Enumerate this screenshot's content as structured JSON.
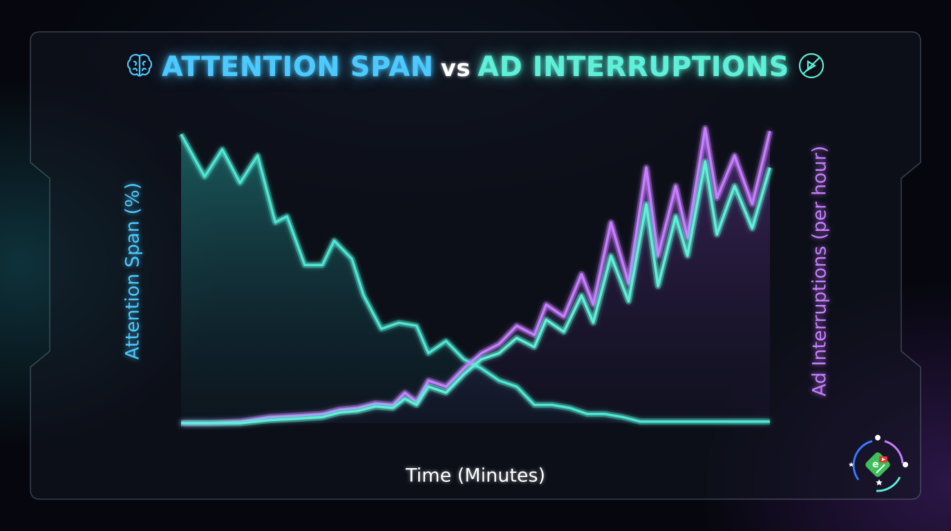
{
  "chart_data": {
    "type": "line",
    "title_part1": "ATTENTION SPAN",
    "title_vs": "vs",
    "title_part2": "AD INTERRUPTIONS",
    "title_icon_left": "brain-icon",
    "title_icon_right": "no-ads-icon",
    "xlabel": "Time (Minutes)",
    "ylabel_left": "Attention Span (%)",
    "ylabel_right": "Ad Interruptions (per hour)",
    "xlim": [
      0,
      1
    ],
    "ylim": [
      0,
      1
    ],
    "x_ticks": [
      0.25,
      0.5,
      0.75
    ],
    "grid": false,
    "series": [
      {
        "color": "#4fe6d2",
        "axis": "left",
        "x": [
          0.0,
          0.04,
          0.07,
          0.1,
          0.13,
          0.16,
          0.18,
          0.21,
          0.24,
          0.26,
          0.29,
          0.31,
          0.34,
          0.37,
          0.4,
          0.42,
          0.45,
          0.48,
          0.51,
          0.54,
          0.57,
          0.6,
          0.63,
          0.66,
          0.69,
          0.72,
          0.75,
          0.78,
          0.81,
          0.84,
          0.87,
          0.9,
          0.93,
          0.96,
          1.0
        ],
        "values": [
          0.95,
          0.81,
          0.9,
          0.79,
          0.88,
          0.66,
          0.68,
          0.52,
          0.52,
          0.6,
          0.54,
          0.42,
          0.31,
          0.33,
          0.32,
          0.23,
          0.27,
          0.21,
          0.18,
          0.14,
          0.12,
          0.06,
          0.06,
          0.05,
          0.03,
          0.03,
          0.02,
          0.005,
          0.005,
          0.005,
          0.005,
          0.005,
          0.005,
          0.005,
          0.005
        ]
      },
      {
        "color": "#c77dff",
        "axis": "right",
        "x": [
          0.0,
          0.05,
          0.1,
          0.15,
          0.2,
          0.24,
          0.27,
          0.3,
          0.33,
          0.36,
          0.38,
          0.4,
          0.42,
          0.45,
          0.48,
          0.51,
          0.54,
          0.57,
          0.6,
          0.62,
          0.65,
          0.68,
          0.7,
          0.73,
          0.76,
          0.79,
          0.81,
          0.84,
          0.86,
          0.89,
          0.91,
          0.94,
          0.97,
          1.0
        ],
        "values": [
          0.0,
          0.0,
          0.005,
          0.02,
          0.025,
          0.03,
          0.045,
          0.05,
          0.065,
          0.06,
          0.1,
          0.07,
          0.14,
          0.12,
          0.18,
          0.23,
          0.26,
          0.32,
          0.29,
          0.39,
          0.35,
          0.49,
          0.39,
          0.66,
          0.46,
          0.84,
          0.55,
          0.78,
          0.61,
          0.97,
          0.74,
          0.88,
          0.72,
          0.96
        ]
      },
      {
        "color": "#5ef0d8",
        "axis": "right",
        "x": [
          0.0,
          0.05,
          0.1,
          0.15,
          0.2,
          0.24,
          0.27,
          0.3,
          0.33,
          0.36,
          0.38,
          0.4,
          0.42,
          0.45,
          0.48,
          0.51,
          0.54,
          0.57,
          0.6,
          0.62,
          0.65,
          0.68,
          0.7,
          0.73,
          0.76,
          0.79,
          0.81,
          0.84,
          0.86,
          0.89,
          0.91,
          0.94,
          0.97,
          1.0
        ],
        "values": [
          0.0,
          0.0,
          0.0,
          0.01,
          0.015,
          0.02,
          0.035,
          0.04,
          0.055,
          0.05,
          0.08,
          0.06,
          0.12,
          0.1,
          0.16,
          0.21,
          0.23,
          0.28,
          0.25,
          0.34,
          0.3,
          0.42,
          0.33,
          0.55,
          0.4,
          0.72,
          0.45,
          0.68,
          0.55,
          0.86,
          0.62,
          0.78,
          0.64,
          0.84
        ]
      }
    ]
  }
}
